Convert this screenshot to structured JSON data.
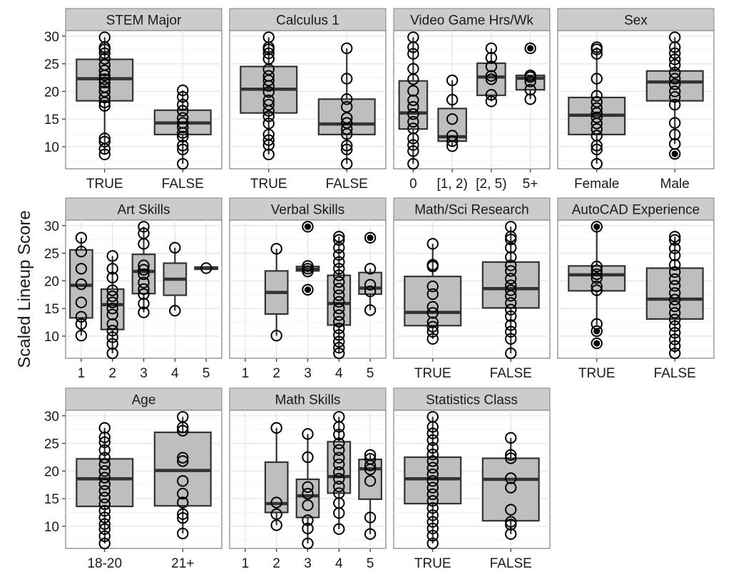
{
  "chart_data": {
    "type": "box",
    "ylabel": "Scaled Lineup Score",
    "ylim": [
      6,
      31
    ],
    "yticks": [
      10,
      15,
      20,
      25,
      30
    ],
    "grid": true,
    "colors": {
      "box_fill": "#bebebe",
      "panel_bg": "#ffffff",
      "strip_bg": "#cccccc",
      "grid": "#e5e5e5",
      "line": "#333333"
    },
    "panels": [
      {
        "title": "STEM Major",
        "levels": [
          "TRUE",
          "FALSE"
        ],
        "boxes": [
          {
            "level": "TRUE",
            "q1": 18.3,
            "median": 22.3,
            "q3": 25.8,
            "low": 8.6,
            "high": 29.8,
            "points": [
              29.8,
              28.0,
              27.6,
              26.9,
              25.9,
              24.8,
              23.8,
              22.9,
              22.2,
              21.6,
              20.8,
              20.0,
              18.9,
              18.0,
              17.4,
              11.5,
              10.9,
              9.6,
              8.6
            ]
          },
          {
            "level": "FALSE",
            "q1": 12.2,
            "median": 14.3,
            "q3": 16.6,
            "low": 6.9,
            "high": 20.2,
            "points": [
              20.2,
              19.0,
              17.6,
              16.5,
              15.2,
              14.3,
              13.5,
              12.5,
              11.8,
              10.2,
              9.5,
              6.9
            ]
          }
        ]
      },
      {
        "title": "Calculus 1",
        "levels": [
          "TRUE",
          "FALSE"
        ],
        "boxes": [
          {
            "level": "TRUE",
            "q1": 16.1,
            "median": 20.4,
            "q3": 24.5,
            "low": 8.6,
            "high": 29.8,
            "points": [
              29.8,
              28.0,
              27.6,
              26.9,
              25.9,
              24.0,
              22.8,
              22.0,
              21.0,
              19.9,
              18.4,
              17.6,
              16.5,
              15.5,
              14.2,
              12.2,
              11.2,
              10.3,
              8.6
            ]
          },
          {
            "level": "FALSE",
            "q1": 12.2,
            "median": 14.1,
            "q3": 18.6,
            "low": 6.9,
            "high": 27.8,
            "points": [
              27.8,
              22.3,
              18.6,
              17.2,
              15.2,
              14.3,
              13.2,
              12.3,
              10.2,
              9.5,
              6.9
            ]
          }
        ]
      },
      {
        "title": "Video Game Hrs/Wk",
        "levels": [
          "0",
          "[1, 2)",
          "[2, 5)",
          "5+"
        ],
        "boxes": [
          {
            "level": "0",
            "q1": 13.2,
            "median": 16.1,
            "q3": 21.9,
            "low": 6.9,
            "high": 29.8,
            "points": [
              29.8,
              28.0,
              26.8,
              24.1,
              22.2,
              20.1,
              18.4,
              17.2,
              15.9,
              14.5,
              13.3,
              11.5,
              10.3,
              9.2,
              6.9
            ]
          },
          {
            "level": "[1, 2)",
            "q1": 11.0,
            "median": 11.8,
            "q3": 16.9,
            "low": 10.1,
            "high": 22.0,
            "points": [
              22.0,
              18.5,
              15.0,
              12.0,
              11.0,
              10.1
            ]
          },
          {
            "level": "[2, 5)",
            "q1": 19.3,
            "median": 22.6,
            "q3": 25.1,
            "low": 18.2,
            "high": 27.8,
            "points": [
              27.8,
              26.1,
              24.5,
              22.8,
              22.2,
              19.4,
              18.2
            ]
          },
          {
            "level": "5+",
            "q1": 20.3,
            "median": 22.4,
            "q3": 22.9,
            "low": 18.6,
            "high": 22.9,
            "points": [
              22.9,
              22.6,
              21.8,
              20.3,
              18.6
            ],
            "outliers": [
              27.8
            ]
          }
        ]
      },
      {
        "title": "Sex",
        "levels": [
          "Female",
          "Male"
        ],
        "boxes": [
          {
            "level": "Female",
            "q1": 12.2,
            "median": 15.7,
            "q3": 18.9,
            "low": 6.9,
            "high": 28.0,
            "points": [
              28.0,
              27.6,
              26.8,
              22.3,
              19.2,
              18.1,
              17.0,
              16.1,
              15.3,
              14.2,
              13.2,
              12.0,
              10.2,
              9.5,
              6.9
            ]
          },
          {
            "level": "Male",
            "q1": 18.3,
            "median": 21.7,
            "q3": 23.7,
            "low": 10.5,
            "high": 29.8,
            "points": [
              29.8,
              28.0,
              26.9,
              25.8,
              24.8,
              23.4,
              22.3,
              21.3,
              20.0,
              19.0,
              17.6,
              14.3,
              12.2,
              10.5
            ],
            "outliers": [
              8.7
            ]
          }
        ]
      },
      {
        "title": "Art Skills",
        "levels": [
          "1",
          "2",
          "3",
          "4",
          "5"
        ],
        "boxes": [
          {
            "level": "1",
            "q1": 13.3,
            "median": 19.2,
            "q3": 25.6,
            "low": 10.1,
            "high": 27.8,
            "points": [
              27.8,
              25.3,
              22.2,
              19.4,
              16.1,
              13.5,
              12.2,
              10.1
            ]
          },
          {
            "level": "2",
            "q1": 11.2,
            "median": 15.7,
            "q3": 18.5,
            "low": 6.9,
            "high": 24.5,
            "points": [
              24.5,
              22.2,
              20.6,
              18.3,
              17.2,
              16.1,
              15.0,
              13.9,
              12.2,
              11.0,
              9.8,
              8.6,
              6.9
            ]
          },
          {
            "level": "3",
            "q1": 17.7,
            "median": 21.7,
            "q3": 24.8,
            "low": 14.3,
            "high": 29.8,
            "points": [
              29.8,
              28.6,
              26.7,
              22.8,
              22.0,
              21.2,
              19.7,
              18.5,
              17.6,
              15.9,
              14.3
            ]
          },
          {
            "level": "4",
            "q1": 17.4,
            "median": 20.3,
            "q3": 23.2,
            "low": 14.6,
            "high": 26.0,
            "points": [
              26.0,
              14.6
            ]
          },
          {
            "level": "5",
            "q1": 22.1,
            "median": 22.3,
            "q3": 22.5,
            "low": 22.1,
            "high": 22.5,
            "points": [
              22.3
            ]
          }
        ]
      },
      {
        "title": "Verbal Skills",
        "levels": [
          "1",
          "2",
          "3",
          "4",
          "5"
        ],
        "boxes": [
          {
            "level": "2",
            "q1": 14.0,
            "median": 17.9,
            "q3": 21.8,
            "low": 10.1,
            "high": 25.8,
            "points": [
              25.8,
              10.1
            ]
          },
          {
            "level": "3",
            "q1": 21.8,
            "median": 22.1,
            "q3": 22.6,
            "low": 21.5,
            "high": 22.9,
            "points": [
              22.7,
              22.2,
              21.7
            ],
            "outliers": [
              29.8,
              18.4
            ]
          },
          {
            "level": "4",
            "q1": 12.0,
            "median": 15.9,
            "q3": 21.0,
            "low": 6.9,
            "high": 28.0,
            "points": [
              28.0,
              27.4,
              26.0,
              24.7,
              23.4,
              22.2,
              21.0,
              19.8,
              18.6,
              17.4,
              16.2,
              15.0,
              13.8,
              12.6,
              11.4,
              10.2,
              9.0,
              7.9,
              6.9
            ]
          },
          {
            "level": "5",
            "q1": 17.6,
            "median": 18.7,
            "q3": 21.5,
            "low": 14.7,
            "high": 22.2,
            "points": [
              22.2,
              19.3,
              18.1,
              14.7
            ],
            "outliers": [
              27.8
            ]
          }
        ]
      },
      {
        "title": "Math/Sci Research",
        "levels": [
          "TRUE",
          "FALSE"
        ],
        "boxes": [
          {
            "level": "TRUE",
            "q1": 11.9,
            "median": 14.3,
            "q3": 20.8,
            "low": 9.5,
            "high": 26.7,
            "points": [
              26.7,
              22.9,
              22.6,
              19.0,
              17.6,
              15.3,
              14.2,
              12.5,
              11.7,
              10.8,
              9.5
            ]
          },
          {
            "level": "FALSE",
            "q1": 15.1,
            "median": 18.6,
            "q3": 23.4,
            "low": 6.9,
            "high": 29.8,
            "points": [
              29.8,
              28.0,
              27.5,
              26.0,
              24.3,
              22.8,
              21.8,
              20.4,
              19.2,
              18.3,
              17.3,
              16.0,
              14.8,
              13.6,
              12.0,
              10.8,
              9.5,
              6.9
            ]
          }
        ]
      },
      {
        "title": "AutoCAD Experience",
        "levels": [
          "TRUE",
          "FALSE"
        ],
        "boxes": [
          {
            "level": "TRUE",
            "q1": 18.2,
            "median": 21.1,
            "q3": 22.7,
            "low": 12.0,
            "high": 29.8,
            "points": [
              22.6,
              21.9,
              21.2,
              20.5,
              19.0,
              18.3,
              12.2
            ],
            "outliers": [
              29.8,
              10.9,
              8.7
            ]
          },
          {
            "level": "FALSE",
            "q1": 13.1,
            "median": 16.7,
            "q3": 22.3,
            "low": 6.9,
            "high": 28.0,
            "points": [
              28.0,
              27.4,
              25.9,
              24.6,
              22.9,
              21.6,
              20.3,
              19.1,
              17.8,
              16.6,
              15.4,
              14.2,
              13.0,
              11.8,
              10.6,
              9.4,
              8.2,
              6.9
            ]
          }
        ]
      },
      {
        "title": "Age",
        "levels": [
          "18-20",
          "21+"
        ],
        "boxes": [
          {
            "level": "18-20",
            "q1": 13.6,
            "median": 18.6,
            "q3": 22.2,
            "low": 6.9,
            "high": 27.8,
            "points": [
              27.8,
              26.1,
              25.2,
              23.8,
              22.4,
              21.2,
              20.0,
              18.8,
              17.6,
              16.4,
              15.2,
              14.0,
              12.8,
              11.6,
              10.4,
              9.5,
              8.2,
              6.9
            ]
          },
          {
            "level": "21+",
            "q1": 13.7,
            "median": 20.1,
            "q3": 27.0,
            "low": 8.7,
            "high": 29.8,
            "points": [
              29.8,
              27.9,
              27.3,
              22.4,
              21.8,
              18.2,
              15.9,
              14.3,
              12.2,
              11.5,
              8.7
            ]
          }
        ]
      },
      {
        "title": "Math Skills",
        "levels": [
          "1",
          "2",
          "3",
          "4",
          "5"
        ],
        "boxes": [
          {
            "level": "2",
            "q1": 12.5,
            "median": 14.1,
            "q3": 21.6,
            "low": 10.2,
            "high": 27.8,
            "points": [
              27.8,
              14.3,
              12.2,
              10.2
            ]
          },
          {
            "level": "3",
            "q1": 11.6,
            "median": 15.5,
            "q3": 18.5,
            "low": 6.9,
            "high": 26.7,
            "points": [
              26.7,
              22.5,
              17.1,
              15.9,
              13.8,
              11.1,
              9.6,
              6.9
            ]
          },
          {
            "level": "4",
            "q1": 16.0,
            "median": 19.0,
            "q3": 25.3,
            "low": 9.5,
            "high": 29.8,
            "points": [
              29.8,
              28.0,
              26.6,
              25.0,
              23.8,
              22.4,
              21.2,
              19.8,
              18.6,
              17.2,
              16.0,
              14.2,
              12.4,
              9.5
            ]
          },
          {
            "level": "5",
            "q1": 14.9,
            "median": 20.4,
            "q3": 22.1,
            "low": 8.6,
            "high": 22.9,
            "points": [
              22.9,
              22.2,
              21.0,
              20.3,
              18.2,
              11.6,
              8.6
            ]
          }
        ]
      },
      {
        "title": "Statistics Class",
        "levels": [
          "TRUE",
          "FALSE"
        ],
        "boxes": [
          {
            "level": "TRUE",
            "q1": 14.1,
            "median": 18.6,
            "q3": 22.5,
            "low": 6.9,
            "high": 29.8,
            "points": [
              29.8,
              28.0,
              26.8,
              25.6,
              24.2,
              23.0,
              21.8,
              20.6,
              19.4,
              18.2,
              17.0,
              15.8,
              14.6,
              13.3,
              12.0,
              10.8,
              9.6,
              8.3,
              6.9
            ]
          },
          {
            "level": "FALSE",
            "q1": 11.0,
            "median": 18.5,
            "q3": 22.3,
            "low": 8.6,
            "high": 26.0,
            "points": [
              26.0,
              22.9,
              22.3,
              18.7,
              17.0,
              13.0,
              10.8,
              10.3,
              8.6
            ]
          }
        ]
      }
    ]
  }
}
